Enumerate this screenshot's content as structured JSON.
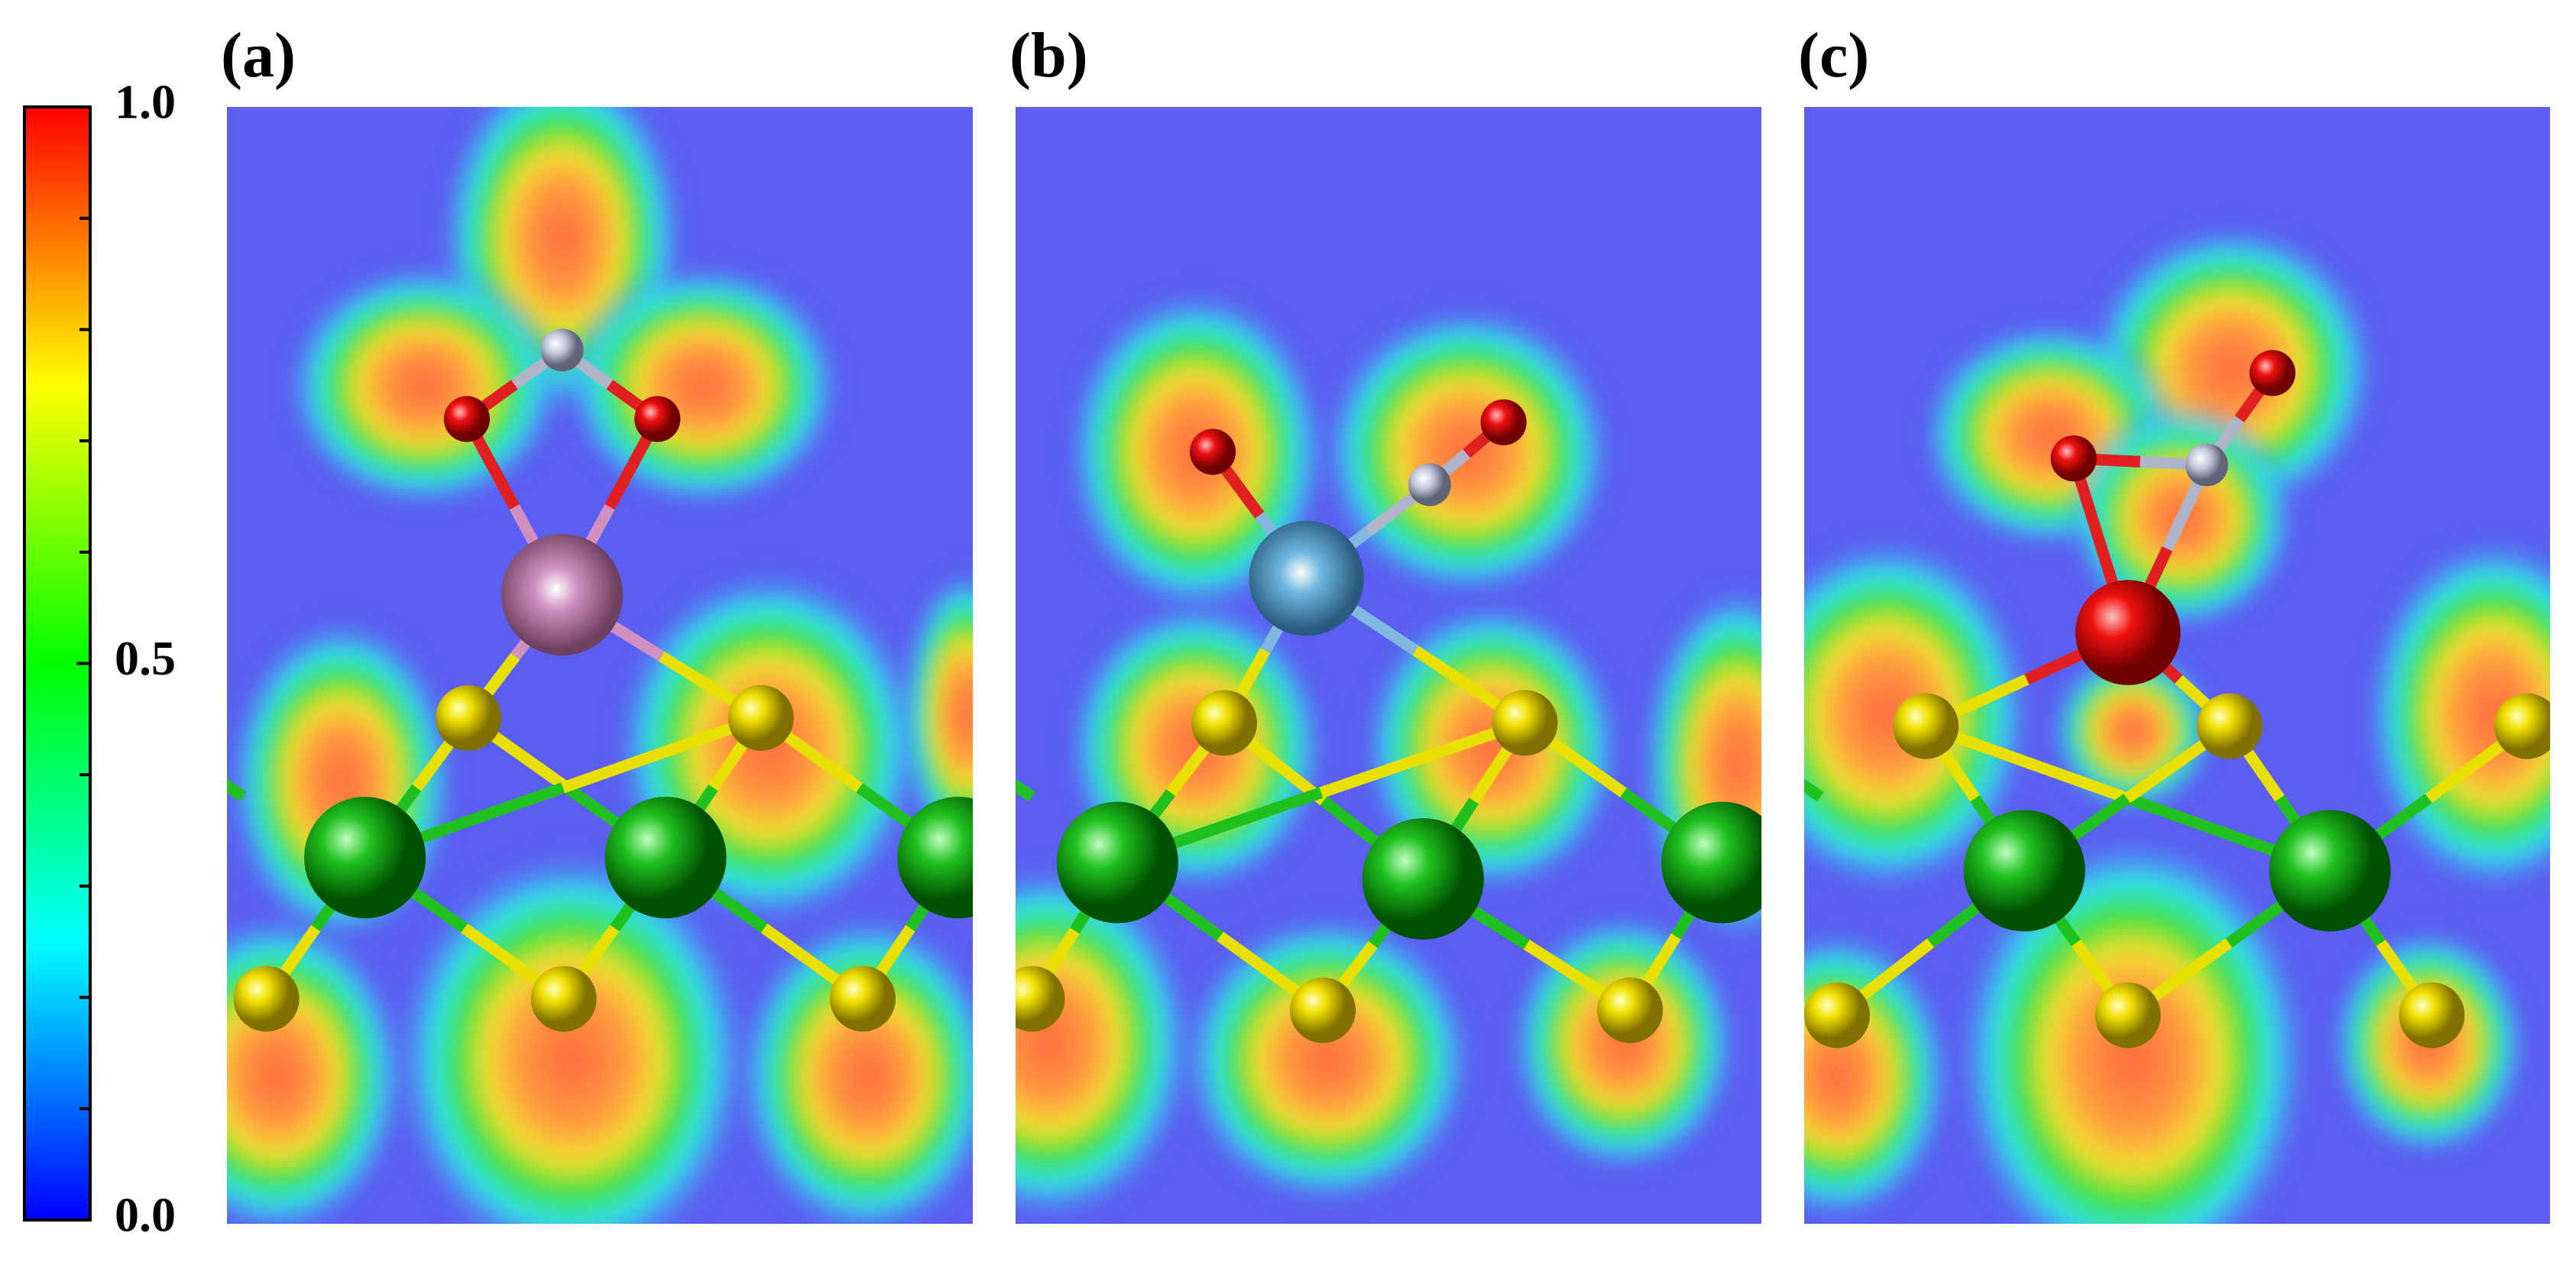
{
  "colorbar": {
    "range": [
      0,
      1
    ],
    "ticks": [
      {
        "value": 0,
        "label": "0.0"
      },
      {
        "value": 0.5,
        "label": "0.5"
      },
      {
        "value": 1,
        "label": "1.0"
      }
    ]
  },
  "panels": [
    {
      "label": "(a)"
    },
    {
      "label": "(b)"
    },
    {
      "label": "(c)"
    }
  ]
}
